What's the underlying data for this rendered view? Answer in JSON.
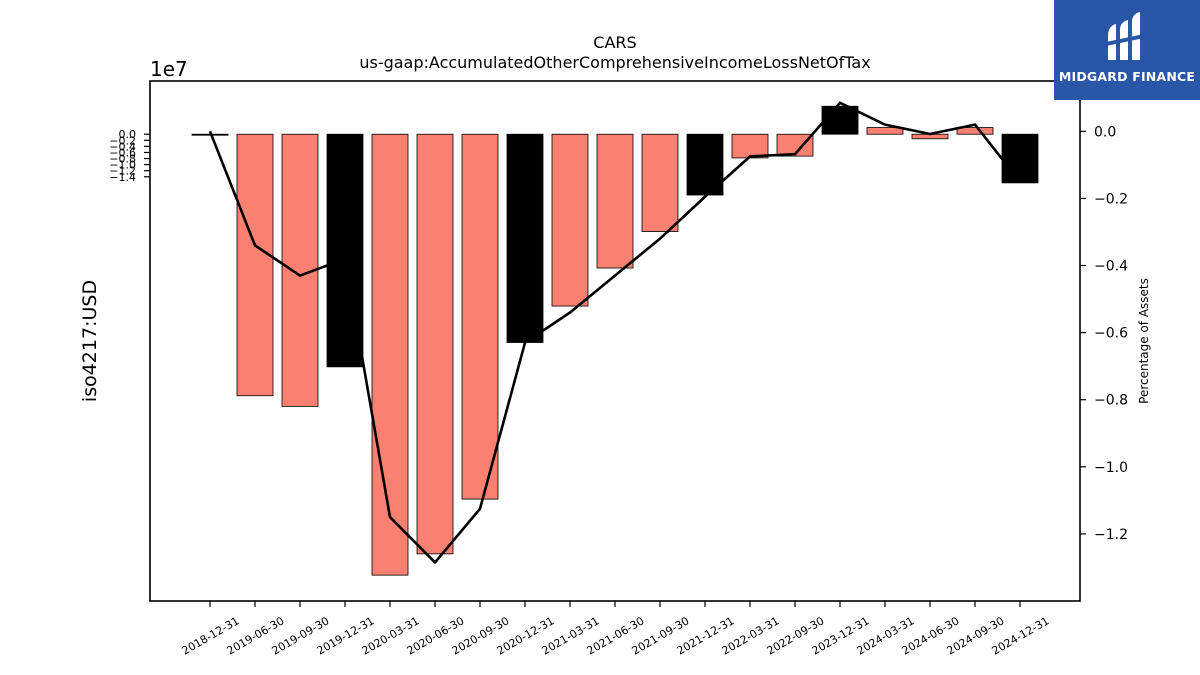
{
  "chart_data": {
    "type": "bar",
    "title": "CARS",
    "subtitle": "us-gaap:AccumulatedOtherComprehensiveIncomeLossNetOfTax",
    "ylabel": "iso4217:USD",
    "y_offset_label": "1e7",
    "y2label": "Percentage of Assets",
    "categories": [
      "2018-12-31",
      "2019-06-30",
      "2019-09-30",
      "2019-12-31",
      "2020-03-31",
      "2020-06-30",
      "2020-09-30",
      "2020-12-31",
      "2021-03-31",
      "2021-06-30",
      "2021-09-30",
      "2021-12-31",
      "2022-03-31",
      "2022-09-30",
      "2023-12-31",
      "2024-03-31",
      "2024-06-30",
      "2024-09-30",
      "2024-12-31"
    ],
    "values": [
      -0.02,
      -8.6,
      -8.95,
      -7.65,
      -14.5,
      -13.8,
      -12.0,
      -6.85,
      -5.65,
      -4.4,
      -3.2,
      -2.0,
      -0.78,
      -0.72,
      0.92,
      0.22,
      -0.15,
      0.22,
      -1.6
    ],
    "bar_colors": [
      "#000000",
      "#fa8072",
      "#fa8072",
      "#000000",
      "#fa8072",
      "#fa8072",
      "#fa8072",
      "#000000",
      "#fa8072",
      "#fa8072",
      "#fa8072",
      "#000000",
      "#fa8072",
      "#fa8072",
      "#000000",
      "#fa8072",
      "#fa8072",
      "#fa8072",
      "#000000"
    ],
    "line_values": [
      0.0,
      -0.34,
      -0.43,
      -0.38,
      -1.15,
      -1.285,
      -1.125,
      -0.63,
      -0.54,
      -0.43,
      -0.32,
      -0.195,
      -0.075,
      -0.068,
      0.085,
      0.02,
      -0.008,
      0.02,
      -0.15
    ],
    "ylim": [
      -15.35,
      1.75
    ],
    "y2lim": [
      -1.4,
      0.15
    ],
    "yticks": [
      0.0,
      -0.2,
      -0.4,
      -0.6,
      -0.8,
      -1.0,
      -1.2,
      -1.4
    ],
    "y2ticks": [
      0.0,
      -0.2,
      -0.4,
      -0.6,
      -0.8,
      -1.0,
      -1.2
    ],
    "ytick_labels": [
      "0.0",
      "−0.2",
      "−0.4",
      "−0.6",
      "−0.8",
      "−1.0",
      "−1.2",
      "−1.4"
    ],
    "y2tick_labels": [
      "0.0",
      "−0.2",
      "−0.4",
      "−0.6",
      "−0.8",
      "−1.0",
      "−1.2"
    ],
    "grid": false,
    "colors": {
      "negative_bar": "#fa8072",
      "highlight_bar": "#000000",
      "line": "#000000"
    }
  },
  "logo": {
    "text": "MIDGARD FINANCE",
    "background": "#2a56a8"
  }
}
